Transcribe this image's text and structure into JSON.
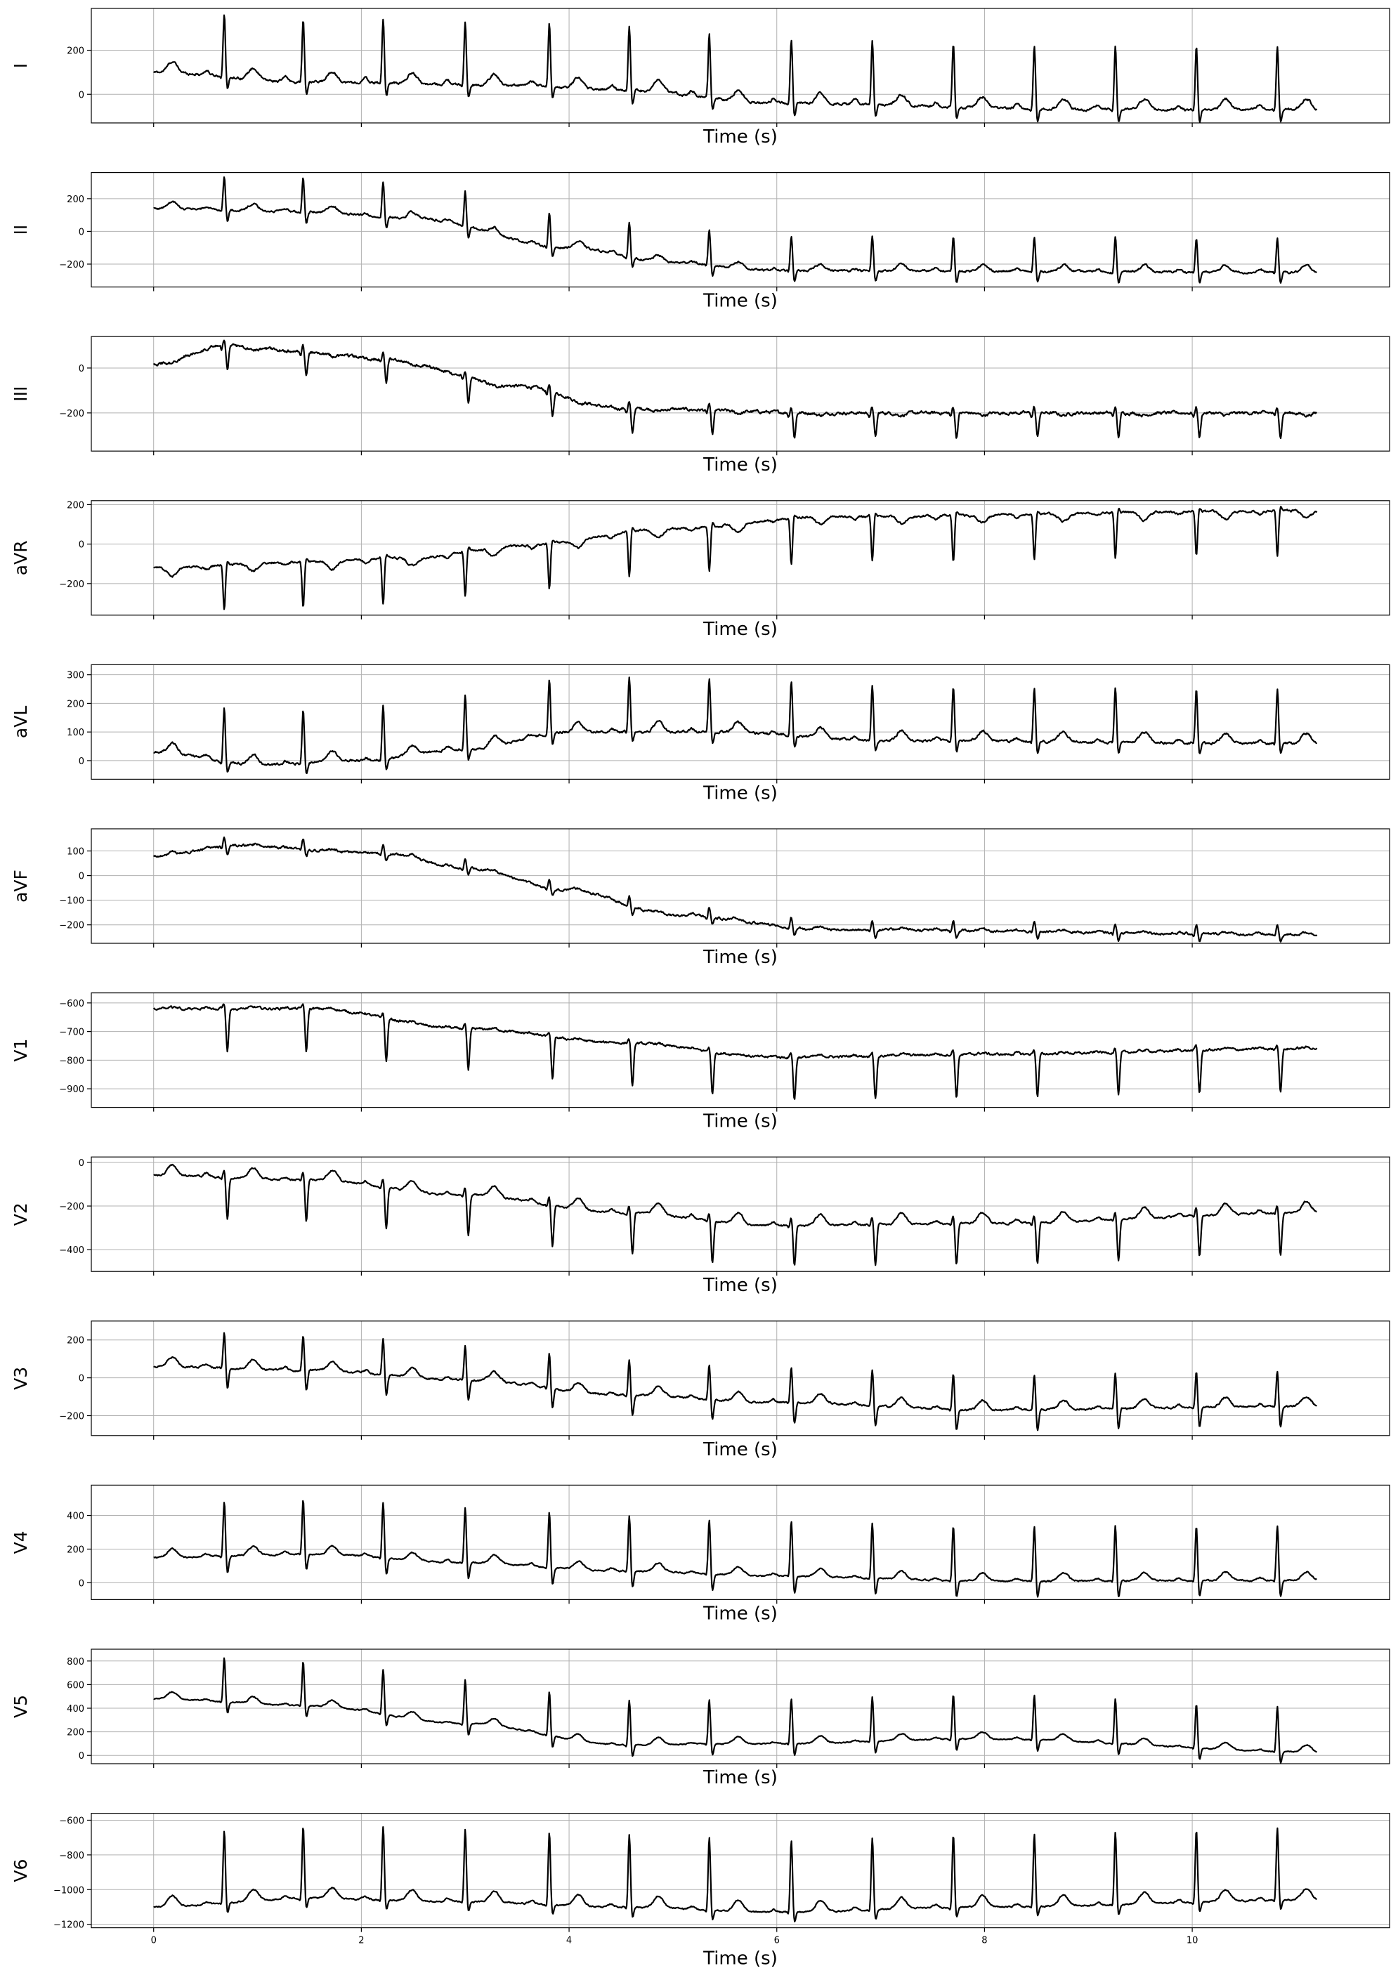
{
  "chart_data": {
    "type": "line",
    "xlabel": "Time (s)",
    "x_range": [
      0,
      11.2
    ],
    "x_ticks": [
      0,
      2,
      4,
      6,
      8,
      10
    ],
    "show_x_tick_labels_on": "last",
    "grid": true,
    "line_color": "#000000",
    "beat_times": [
      0.68,
      1.44,
      2.21,
      3.0,
      3.81,
      4.58,
      5.35,
      6.14,
      6.92,
      7.7,
      8.48,
      9.26,
      10.04,
      10.82
    ],
    "leads": [
      {
        "label": "I",
        "ylim": [
          -130,
          390
        ],
        "yticks": [
          0,
          200
        ],
        "baseline": [
          [
            0,
            100
          ],
          [
            1.5,
            55
          ],
          [
            3.5,
            40
          ],
          [
            4.5,
            20
          ],
          [
            6,
            -40
          ],
          [
            9,
            -70
          ],
          [
            11.2,
            -70
          ]
        ],
        "r": 290,
        "q": -10,
        "s": -60,
        "t": 50,
        "p": 20,
        "noise": 8
      },
      {
        "label": "II",
        "ylim": [
          -340,
          360
        ],
        "yticks": [
          -200,
          0,
          200
        ],
        "baseline": [
          [
            0,
            140
          ],
          [
            1.5,
            120
          ],
          [
            2.5,
            80
          ],
          [
            4,
            -100
          ],
          [
            5,
            -190
          ],
          [
            6,
            -240
          ],
          [
            11.2,
            -250
          ]
        ],
        "r": 210,
        "q": -15,
        "s": -70,
        "t": 40,
        "p": 15,
        "noise": 9
      },
      {
        "label": "III",
        "ylim": [
          -370,
          140
        ],
        "yticks": [
          -200,
          0
        ],
        "baseline": [
          [
            0,
            20
          ],
          [
            0.7,
            100
          ],
          [
            1.5,
            70
          ],
          [
            2.2,
            40
          ],
          [
            3.5,
            -80
          ],
          [
            4.5,
            -180
          ],
          [
            6.5,
            -200
          ],
          [
            11.2,
            -200
          ]
        ],
        "r": 30,
        "q": -20,
        "s": -110,
        "t": -10,
        "p": 0,
        "noise": 10
      },
      {
        "label": "aVR",
        "ylim": [
          -360,
          220
        ],
        "yticks": [
          -200,
          0,
          200
        ],
        "baseline": [
          [
            0,
            -120
          ],
          [
            1.5,
            -90
          ],
          [
            2.5,
            -70
          ],
          [
            3.5,
            -10
          ],
          [
            5,
            80
          ],
          [
            6.5,
            140
          ],
          [
            11.2,
            170
          ]
        ],
        "r": -230,
        "q": 10,
        "s": 20,
        "t": -40,
        "p": -15,
        "noise": 8
      },
      {
        "label": "aVL",
        "ylim": [
          -65,
          335
        ],
        "yticks": [
          0,
          100,
          200,
          300
        ],
        "baseline": [
          [
            0,
            30
          ],
          [
            1,
            -15
          ],
          [
            2,
            0
          ],
          [
            3,
            40
          ],
          [
            4,
            100
          ],
          [
            5.5,
            100
          ],
          [
            7,
            70
          ],
          [
            11.2,
            60
          ]
        ],
        "r": 190,
        "q": -10,
        "s": -40,
        "t": 35,
        "p": 10,
        "noise": 6
      },
      {
        "label": "aVF",
        "ylim": [
          -275,
          190
        ],
        "yticks": [
          -200,
          -100,
          0,
          100
        ],
        "baseline": [
          [
            0,
            80
          ],
          [
            0.8,
            120
          ],
          [
            2.2,
            90
          ],
          [
            3,
            30
          ],
          [
            4,
            -60
          ],
          [
            5,
            -160
          ],
          [
            6.5,
            -220
          ],
          [
            11.2,
            -240
          ]
        ],
        "r": 40,
        "q": -10,
        "s": -30,
        "t": 10,
        "p": 5,
        "noise": 7
      },
      {
        "label": "V1",
        "ylim": [
          -965,
          -565
        ],
        "yticks": [
          -900,
          -800,
          -700,
          -600
        ],
        "baseline": [
          [
            0,
            -620
          ],
          [
            1.5,
            -620
          ],
          [
            3,
            -690
          ],
          [
            4.5,
            -740
          ],
          [
            6,
            -790
          ],
          [
            8,
            -780
          ],
          [
            11.2,
            -760
          ]
        ],
        "r": 20,
        "q": 0,
        "s": -150,
        "t": 5,
        "p": 5,
        "noise": 6
      },
      {
        "label": "V2",
        "ylim": [
          -500,
          25
        ],
        "yticks": [
          -400,
          -200,
          0
        ],
        "baseline": [
          [
            0,
            -60
          ],
          [
            1.5,
            -80
          ],
          [
            3,
            -150
          ],
          [
            4.5,
            -230
          ],
          [
            6,
            -290
          ],
          [
            8,
            -280
          ],
          [
            11.2,
            -230
          ]
        ],
        "r": 40,
        "q": -10,
        "s": -190,
        "t": 50,
        "p": 15,
        "noise": 6
      },
      {
        "label": "V3",
        "ylim": [
          -305,
          300
        ],
        "yticks": [
          -200,
          0,
          200
        ],
        "baseline": [
          [
            0,
            60
          ],
          [
            1.5,
            40
          ],
          [
            3,
            -10
          ],
          [
            4.5,
            -90
          ],
          [
            6,
            -130
          ],
          [
            8,
            -170
          ],
          [
            11.2,
            -150
          ]
        ],
        "r": 190,
        "q": -10,
        "s": -110,
        "t": 50,
        "p": 15,
        "noise": 7
      },
      {
        "label": "V4",
        "ylim": [
          -100,
          580
        ],
        "yticks": [
          0,
          200,
          400
        ],
        "baseline": [
          [
            0,
            150
          ],
          [
            1.5,
            170
          ],
          [
            3,
            120
          ],
          [
            4.5,
            70
          ],
          [
            6,
            40
          ],
          [
            8,
            10
          ],
          [
            11.2,
            15
          ]
        ],
        "r": 330,
        "q": -15,
        "s": -100,
        "t": 50,
        "p": 15,
        "noise": 6
      },
      {
        "label": "V5",
        "ylim": [
          -70,
          900
        ],
        "yticks": [
          0,
          200,
          400,
          600,
          800
        ],
        "baseline": [
          [
            0,
            480
          ],
          [
            1.5,
            420
          ],
          [
            3,
            270
          ],
          [
            4.5,
            90
          ],
          [
            6,
            100
          ],
          [
            8,
            140
          ],
          [
            11.2,
            30
          ]
        ],
        "r": 380,
        "q": -20,
        "s": -100,
        "t": 60,
        "p": 15,
        "noise": 7
      },
      {
        "label": "V6",
        "ylim": [
          -1220,
          -560
        ],
        "yticks": [
          -1200,
          -1000,
          -800,
          -600
        ],
        "baseline": [
          [
            0,
            -1100
          ],
          [
            1.5,
            -1050
          ],
          [
            3,
            -1070
          ],
          [
            4.5,
            -1100
          ],
          [
            6,
            -1130
          ],
          [
            8,
            -1100
          ],
          [
            11.2,
            -1060
          ]
        ],
        "r": 420,
        "q": -20,
        "s": -60,
        "t": 65,
        "p": 15,
        "noise": 6
      }
    ]
  }
}
